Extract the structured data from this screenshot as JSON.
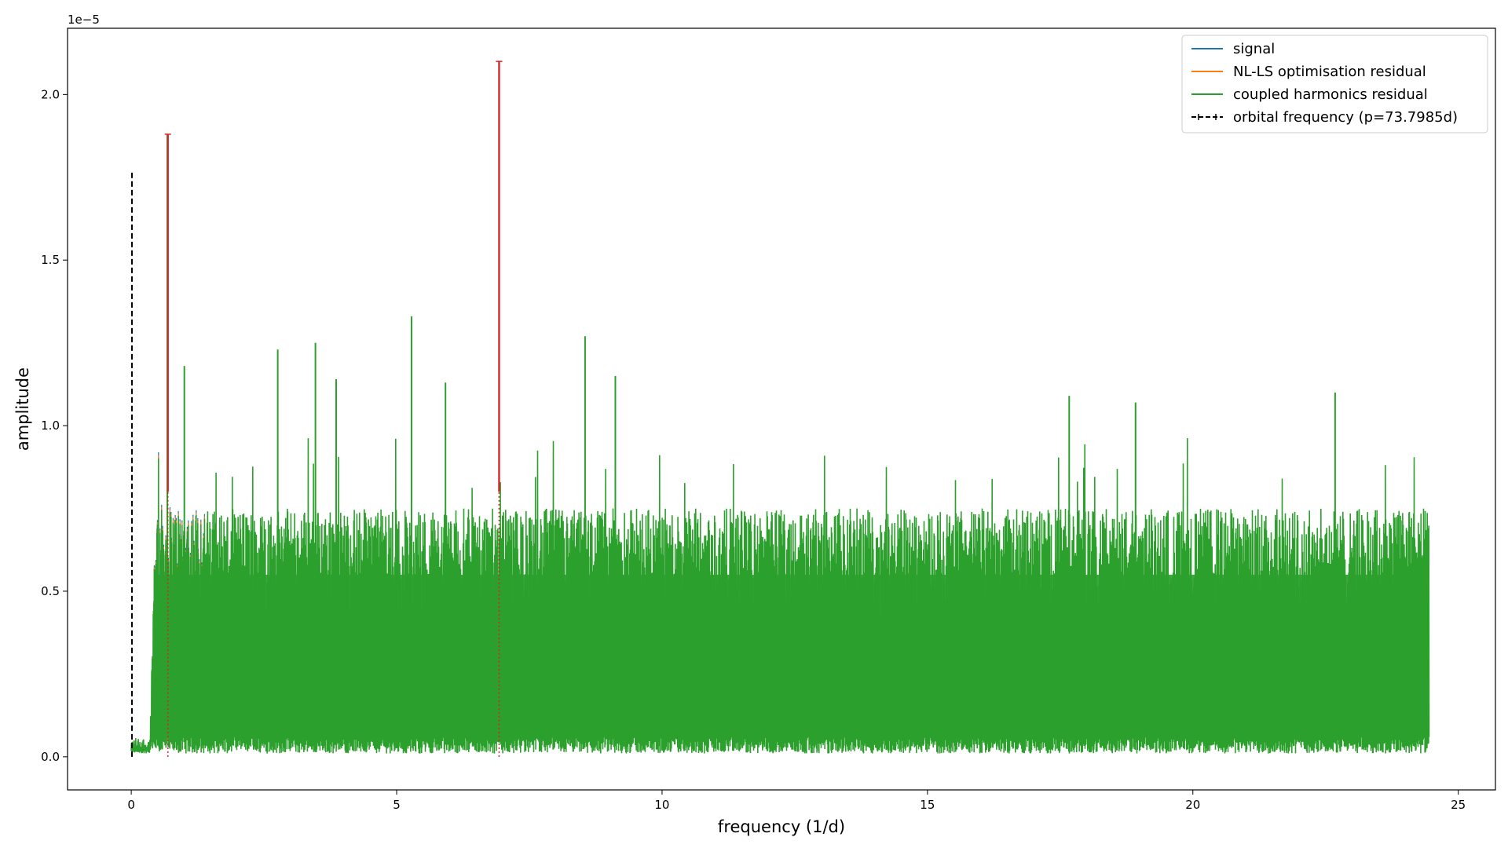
{
  "chart_data": {
    "type": "line",
    "title": "",
    "xlabel": "frequency (1/d)",
    "ylabel": "amplitude",
    "y_offset_label": "1e−5",
    "xlim": [
      -1.2,
      25.7
    ],
    "ylim": [
      -0.1,
      2.2
    ],
    "x_ticks": [
      0,
      5,
      10,
      15,
      20,
      25
    ],
    "x_tick_labels": [
      "0",
      "5",
      "10",
      "15",
      "20",
      "25"
    ],
    "y_ticks": [
      0.0,
      0.5,
      1.0,
      1.5,
      2.0
    ],
    "y_tick_labels": [
      "0.0",
      "0.5",
      "1.0",
      "1.5",
      "2.0"
    ],
    "grid": false,
    "legend_position": "top-right",
    "series": [
      {
        "name": "signal",
        "color": "#1f77b4",
        "style": "solid"
      },
      {
        "name": "NL-LS optimisation residual",
        "color": "#ff7f0e",
        "style": "solid"
      },
      {
        "name": "coupled harmonics residual",
        "color": "#2ca02c",
        "style": "solid"
      },
      {
        "name": "orbital frequency (p=73.7985d)",
        "color": "#000000",
        "style": "dashed",
        "value": 0.01355
      }
    ],
    "noise_band": {
      "color": "#2ca02c",
      "x_range": [
        0.0,
        24.45
      ],
      "floor": 0.02,
      "typical_max": 0.75,
      "rise_start": 0.35,
      "rise_end": 0.45
    },
    "peaks": [
      {
        "x": 0.68,
        "y": 1.88
      },
      {
        "x": 5.28,
        "y": 1.33
      },
      {
        "x": 2.76,
        "y": 1.23
      },
      {
        "x": 3.47,
        "y": 1.25
      },
      {
        "x": 8.55,
        "y": 1.27
      },
      {
        "x": 22.68,
        "y": 1.1
      },
      {
        "x": 1.0,
        "y": 1.18
      },
      {
        "x": 3.86,
        "y": 1.14
      },
      {
        "x": 5.92,
        "y": 1.13
      },
      {
        "x": 9.12,
        "y": 1.15
      },
      {
        "x": 17.67,
        "y": 1.09
      },
      {
        "x": 18.92,
        "y": 1.07
      }
    ],
    "marked_frequencies": [
      {
        "x": 0.69,
        "y": 1.88,
        "color": "#d62728"
      },
      {
        "x": 6.93,
        "y": 2.1,
        "color": "#d62728"
      }
    ]
  }
}
